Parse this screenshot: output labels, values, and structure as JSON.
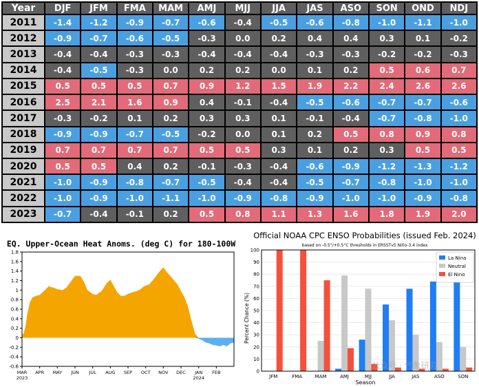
{
  "chart_data": [
    {
      "type": "table",
      "columns": [
        "Year",
        "DJF",
        "JFM",
        "FMA",
        "MAM",
        "AMJ",
        "MJJ",
        "JJA",
        "JAS",
        "ASO",
        "SON",
        "OND",
        "NDJ"
      ],
      "rows": [
        {
          "year": "2011",
          "values": [
            "-1.4",
            "-1.2",
            "-0.9",
            "-0.7",
            "-0.6",
            "-0.4",
            "-0.5",
            "-0.6",
            "-0.8",
            "-1.0",
            "-1.1",
            "-1.0"
          ]
        },
        {
          "year": "2012",
          "values": [
            "-0.9",
            "-0.7",
            "-0.6",
            "-0.5",
            "-0.3",
            "0.0",
            "0.2",
            "0.4",
            "0.4",
            "0.3",
            "0.1",
            "-0.2"
          ]
        },
        {
          "year": "2013",
          "values": [
            "-0.4",
            "-0.4",
            "-0.3",
            "-0.3",
            "-0.4",
            "-0.4",
            "-0.4",
            "-0.3",
            "-0.3",
            "-0.2",
            "-0.2",
            "-0.3"
          ]
        },
        {
          "year": "2014",
          "values": [
            "-0.4",
            "-0.5",
            "-0.3",
            "0.0",
            "0.2",
            "0.2",
            "0.0",
            "0.1",
            "0.2",
            "0.5",
            "0.6",
            "0.7"
          ]
        },
        {
          "year": "2015",
          "values": [
            "0.5",
            "0.5",
            "0.5",
            "0.7",
            "0.9",
            "1.2",
            "1.5",
            "1.9",
            "2.2",
            "2.4",
            "2.6",
            "2.6"
          ]
        },
        {
          "year": "2016",
          "values": [
            "2.5",
            "2.1",
            "1.6",
            "0.9",
            "0.4",
            "-0.1",
            "-0.4",
            "-0.5",
            "-0.6",
            "-0.7",
            "-0.7",
            "-0.6"
          ]
        },
        {
          "year": "2017",
          "values": [
            "-0.3",
            "-0.2",
            "0.1",
            "0.2",
            "0.3",
            "0.3",
            "0.1",
            "-0.1",
            "-0.4",
            "-0.7",
            "-0.8",
            "-1.0"
          ]
        },
        {
          "year": "2018",
          "values": [
            "-0.9",
            "-0.9",
            "-0.7",
            "-0.5",
            "-0.2",
            "0.0",
            "0.1",
            "0.2",
            "0.5",
            "0.8",
            "0.9",
            "0.8"
          ]
        },
        {
          "year": "2019",
          "values": [
            "0.7",
            "0.7",
            "0.7",
            "0.7",
            "0.5",
            "0.5",
            "0.3",
            "0.1",
            "0.2",
            "0.3",
            "0.5",
            "0.5"
          ]
        },
        {
          "year": "2020",
          "values": [
            "0.5",
            "0.5",
            "0.4",
            "0.2",
            "-0.1",
            "-0.3",
            "-0.4",
            "-0.6",
            "-0.9",
            "-1.2",
            "-1.3",
            "-1.2"
          ]
        },
        {
          "year": "2021",
          "values": [
            "-1.0",
            "-0.9",
            "-0.8",
            "-0.7",
            "-0.5",
            "-0.4",
            "-0.4",
            "-0.5",
            "-0.7",
            "-0.8",
            "-1.0",
            "-1.0"
          ]
        },
        {
          "year": "2022",
          "values": [
            "-1.0",
            "-0.9",
            "-1.0",
            "-1.1",
            "-1.0",
            "-0.9",
            "-0.8",
            "-0.9",
            "-1.0",
            "-1.0",
            "-0.9",
            "-0.8"
          ]
        },
        {
          "year": "2023",
          "values": [
            "-0.7",
            "-0.4",
            "-0.1",
            "0.2",
            "0.5",
            "0.8",
            "1.1",
            "1.3",
            "1.6",
            "1.8",
            "1.9",
            "2.0"
          ]
        }
      ],
      "colors": {
        "la_nina": "#4a9fe0",
        "el_nino": "#e26a79",
        "neutral": "#5f5f5f",
        "header": "#5f5f5f",
        "year_cell": "#c9c9c9"
      }
    },
    {
      "type": "area",
      "title": "EQ. Upper-Ocean Heat Anoms. (deg C) for 180-100W",
      "ylim": [
        -0.6,
        1.8
      ],
      "yticks": [
        "1.8",
        "1.6",
        "1.4",
        "1.2",
        "1",
        "0.8",
        "0.6",
        "0.4",
        "0.2",
        "0",
        "-0.2",
        "-0.4",
        "-0.6"
      ],
      "xticks": [
        "MAR\n2023",
        "APR",
        "MAY",
        "JUN",
        "JUL",
        "AUG",
        "SEP",
        "OCT",
        "NOV",
        "DEC",
        "JAN\n2024",
        "FEB"
      ],
      "x": [
        0,
        0.1,
        0.2,
        0.3,
        0.45,
        0.6,
        0.8,
        1.0,
        1.3,
        1.5,
        1.8,
        2.0,
        2.3,
        2.5,
        2.8,
        3.0,
        3.3,
        3.5,
        3.7,
        4.0,
        4.2,
        4.5,
        4.8,
        5.0,
        5.2,
        5.4,
        5.6,
        5.8,
        6.0,
        6.2,
        6.5,
        6.7,
        6.9,
        7.2,
        7.5,
        7.8,
        8.0,
        8.2,
        8.5,
        8.8,
        9.0,
        9.2,
        9.4,
        9.6,
        9.8,
        10.0,
        10.2,
        10.4,
        10.6,
        10.8,
        11.0,
        11.2,
        11.4,
        11.6,
        11.8,
        12.0
      ],
      "y": [
        0.05,
        0.1,
        0.25,
        0.5,
        0.75,
        0.85,
        0.88,
        0.9,
        1.0,
        1.08,
        1.05,
        1.02,
        1.0,
        1.05,
        1.2,
        1.3,
        1.3,
        1.18,
        1.0,
        0.92,
        0.9,
        0.98,
        1.15,
        1.22,
        1.08,
        0.95,
        0.88,
        0.88,
        0.92,
        0.95,
        0.98,
        1.02,
        1.08,
        1.12,
        1.25,
        1.4,
        1.48,
        1.38,
        1.25,
        1.12,
        0.98,
        0.85,
        0.65,
        0.35,
        0.08,
        -0.02,
        -0.05,
        -0.1,
        -0.12,
        -0.15,
        -0.16,
        -0.18,
        -0.15,
        -0.18,
        -0.12,
        -0.1
      ],
      "colors": {
        "positive": "#f5a500",
        "negative": "#5ab0f0"
      }
    },
    {
      "type": "bar",
      "title": "Official NOAA CPC ENSO Probabilities (issued Feb. 2024)",
      "subtitle": "based on -0.5°/+0.5°C thresholds in ERSSTv5 Niño-3.4 index",
      "xlabel": "Season",
      "ylabel": "Percent Chance (%)",
      "ylim": [
        0,
        100
      ],
      "categories": [
        "JFM",
        "FMA",
        "MAM",
        "AMJ",
        "MJJ",
        "JJA",
        "JAS",
        "ASO",
        "SON"
      ],
      "series": [
        {
          "name": "La Nina",
          "color": "#1e7ef5",
          "values": [
            0,
            0,
            0,
            2,
            26,
            55,
            68,
            74,
            77
          ]
        },
        {
          "name": "Neutral",
          "color": "#c8c8c8",
          "values": [
            0,
            0,
            25,
            79,
            68,
            42,
            30,
            24,
            20
          ]
        },
        {
          "name": "El Nino",
          "color": "#f5503c",
          "values": [
            100,
            100,
            75,
            19,
            6,
            3,
            2,
            2,
            3
          ]
        }
      ],
      "legend": "top-right",
      "watermark": "公众号 · 气象研究"
    }
  ]
}
